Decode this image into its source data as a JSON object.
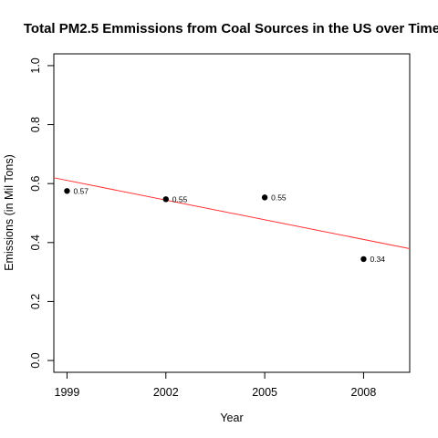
{
  "chart_data": {
    "type": "scatter",
    "title": "Total PM2.5 Emmissions from Coal Sources in the US over Time",
    "xlabel": "Year",
    "ylabel": "Emissions (in Mil Tons)",
    "xlim": [
      1998.6,
      2009.4
    ],
    "ylim": [
      -0.04,
      1.04
    ],
    "x_ticks": [
      {
        "value": 1999,
        "label": "1999"
      },
      {
        "value": 2002,
        "label": "2002"
      },
      {
        "value": 2005,
        "label": "2005"
      },
      {
        "value": 2008,
        "label": "2008"
      }
    ],
    "y_ticks": [
      {
        "value": 0.0,
        "label": "0.0"
      },
      {
        "value": 0.2,
        "label": "0.2"
      },
      {
        "value": 0.4,
        "label": "0.4"
      },
      {
        "value": 0.6,
        "label": "0.6"
      },
      {
        "value": 0.8,
        "label": "0.8"
      },
      {
        "value": 1.0,
        "label": "1.0"
      }
    ],
    "points": [
      {
        "x": 1999,
        "y": 0.575,
        "label": "0.57"
      },
      {
        "x": 2002,
        "y": 0.547,
        "label": "0.55"
      },
      {
        "x": 2005,
        "y": 0.553,
        "label": "0.55"
      },
      {
        "x": 2008,
        "y": 0.344,
        "label": "0.34"
      }
    ],
    "trend_line": {
      "color": "#ff3333",
      "intercept": 0.6108,
      "slope": -0.02225,
      "x_origin": 1999
    },
    "point_color": "#000000",
    "grid": false,
    "legend": "none"
  }
}
